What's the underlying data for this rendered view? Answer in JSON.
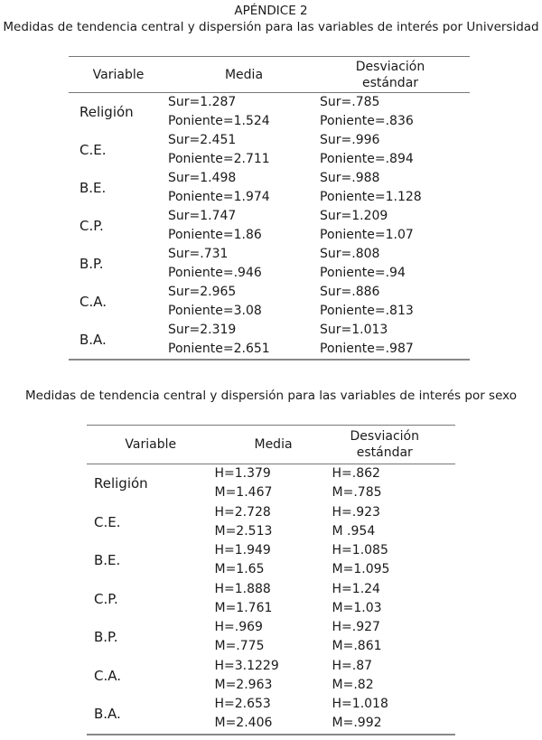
{
  "appendix_title": "APÉNDICE 2",
  "table1": {
    "caption": "Medidas de tendencia central y dispersión para las variables de interés  por Universidad",
    "headers": [
      "Variable",
      "Media",
      "Desviación estándar"
    ],
    "rows": [
      {
        "variable": "Religión",
        "media": [
          "Sur=1.287",
          "Poniente=1.524"
        ],
        "sd": [
          "Sur=.785",
          "Poniente=.836"
        ]
      },
      {
        "variable": "C.E.",
        "media": [
          "Sur=2.451",
          "Poniente=2.711"
        ],
        "sd": [
          "Sur=.996",
          "Poniente=.894"
        ]
      },
      {
        "variable": "B.E.",
        "media": [
          "Sur=1.498",
          "Poniente=1.974"
        ],
        "sd": [
          "Sur=.988",
          "Poniente=1.128"
        ]
      },
      {
        "variable": "C.P.",
        "media": [
          "Sur=1.747",
          "Poniente=1.86"
        ],
        "sd": [
          "Sur=1.209",
          "Poniente=1.07"
        ]
      },
      {
        "variable": "B.P.",
        "media": [
          "Sur=.731",
          "Poniente=.946"
        ],
        "sd": [
          "Sur=.808",
          "Poniente=.94"
        ]
      },
      {
        "variable": "C.A.",
        "media": [
          "Sur=2.965",
          "Poniente=3.08"
        ],
        "sd": [
          "Sur=.886",
          "Poniente=.813"
        ]
      },
      {
        "variable": "B.A.",
        "media": [
          "Sur=2.319",
          "Poniente=2.651"
        ],
        "sd": [
          "Sur=1.013",
          "Poniente=.987"
        ]
      }
    ]
  },
  "table2": {
    "caption": "Medidas de tendencia central y dispersión para las variables de interés por sexo",
    "headers": [
      "Variable",
      "Media",
      "Desviación estándar"
    ],
    "rows": [
      {
        "variable": "Religión",
        "media": [
          "H=1.379",
          "M=1.467"
        ],
        "sd": [
          "H=.862",
          "M=.785"
        ]
      },
      {
        "variable": "C.E.",
        "media": [
          "H=2.728",
          "M=2.513"
        ],
        "sd": [
          "H=.923",
          "M .954"
        ]
      },
      {
        "variable": "B.E.",
        "media": [
          "H=1.949",
          "M=1.65"
        ],
        "sd": [
          "H=1.085",
          "M=1.095"
        ]
      },
      {
        "variable": "C.P.",
        "media": [
          "H=1.888",
          "M=1.761"
        ],
        "sd": [
          "H=1.24",
          "M=1.03"
        ]
      },
      {
        "variable": "B.P.",
        "media": [
          "H=.969",
          "M=.775"
        ],
        "sd": [
          "H=.927",
          "M=.861"
        ]
      },
      {
        "variable": "C.A.",
        "media": [
          "H=3.1229",
          "M=2.963"
        ],
        "sd": [
          "H=.87",
          "M=.82"
        ]
      },
      {
        "variable": "B.A.",
        "media": [
          "H=2.653",
          "M=2.406"
        ],
        "sd": [
          "H=1.018",
          "M=.992"
        ]
      }
    ]
  }
}
